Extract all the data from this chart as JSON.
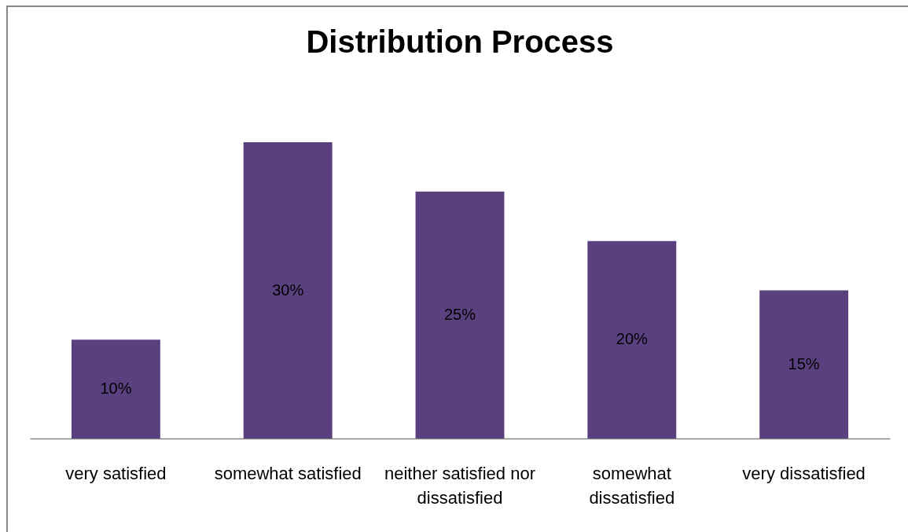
{
  "chart_data": {
    "type": "bar",
    "title": "Distribution Process",
    "categories": [
      "very satisfied",
      "somewhat satisfied",
      "neither satisfied nor dissatisfied",
      "somewhat dissatisfied",
      "very dissatisfied"
    ],
    "values": [
      10,
      30,
      25,
      20,
      15
    ],
    "color": "#5b4080",
    "value_labels": [
      "10%",
      "30%",
      "25%",
      "20%",
      "15%"
    ],
    "tick_labels": "x"
  }
}
